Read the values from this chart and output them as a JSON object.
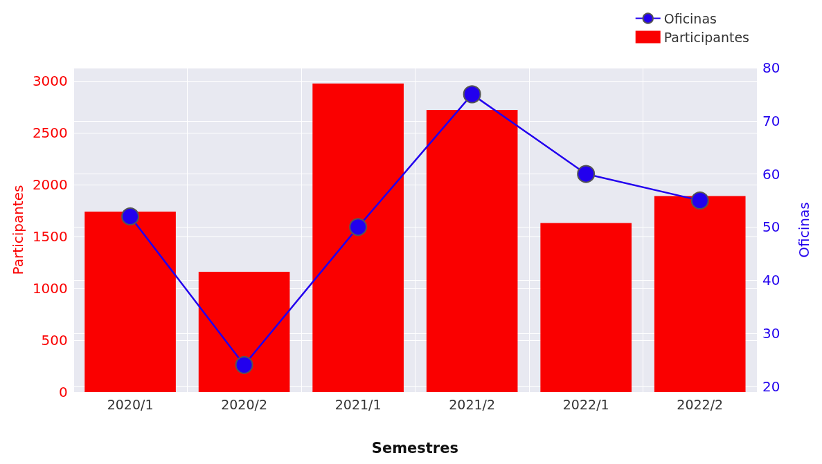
{
  "chart_data": {
    "type": "bar",
    "xlabel": "Semestres",
    "ylabel": "Participantes",
    "y2label": "Oficinas",
    "categories": [
      "2020/1",
      "2020/2",
      "2021/1",
      "2021/2",
      "2022/1",
      "2022/2"
    ],
    "series": [
      {
        "name": "Oficinas",
        "type": "line",
        "axis": "y2",
        "color": "#2200ee",
        "values": [
          52,
          24,
          50,
          75,
          60,
          55
        ]
      },
      {
        "name": "Participantes",
        "color": "#fa0000",
        "values": [
          1740,
          1160,
          2975,
          2720,
          1630,
          1890
        ]
      }
    ],
    "ylim": [
      0,
      3127
    ],
    "yticks": [
      0,
      500,
      1000,
      1500,
      2000,
      2500,
      3000
    ],
    "y2lim": [
      18.9,
      80
    ],
    "y2ticks": [
      20,
      30,
      40,
      50,
      60,
      70,
      80
    ],
    "grid": true,
    "legend": "top right",
    "marker": "circle",
    "line_style": "solid"
  }
}
